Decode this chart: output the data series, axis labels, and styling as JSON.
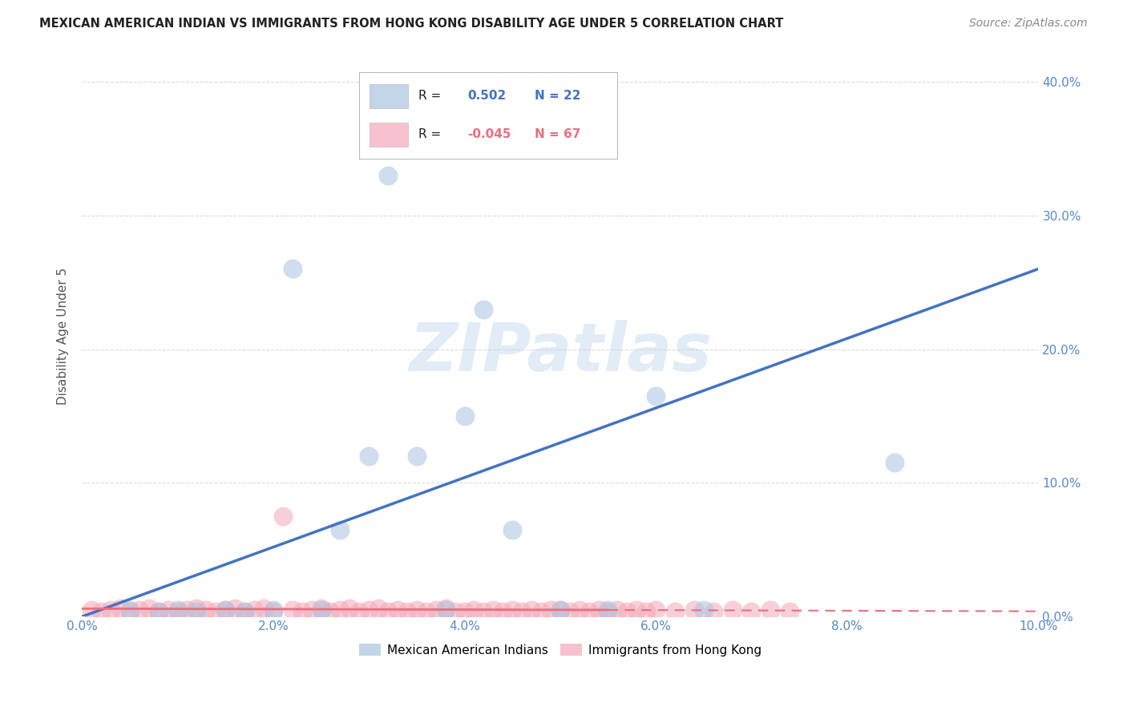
{
  "title": "MEXICAN AMERICAN INDIAN VS IMMIGRANTS FROM HONG KONG DISABILITY AGE UNDER 5 CORRELATION CHART",
  "source": "Source: ZipAtlas.com",
  "ylabel": "Disability Age Under 5",
  "xlim": [
    0.0,
    0.1
  ],
  "ylim": [
    0.0,
    0.42
  ],
  "xticks": [
    0.0,
    0.02,
    0.04,
    0.06,
    0.08,
    0.1
  ],
  "yticks": [
    0.0,
    0.1,
    0.2,
    0.3,
    0.4
  ],
  "blue_R": 0.502,
  "blue_N": 22,
  "pink_R": -0.045,
  "pink_N": 67,
  "blue_color": "#A8C4E0",
  "pink_color": "#F4A8B8",
  "blue_line_color": "#4472C4",
  "pink_line_color": "#E87080",
  "grid_color": "#CCCCCC",
  "background_color": "#FFFFFF",
  "watermark_text": "ZIPatlas",
  "blue_scatter_x": [
    0.005,
    0.008,
    0.01,
    0.012,
    0.015,
    0.017,
    0.02,
    0.022,
    0.025,
    0.027,
    0.03,
    0.032,
    0.035,
    0.038,
    0.04,
    0.042,
    0.045,
    0.05,
    0.055,
    0.06,
    0.065,
    0.085
  ],
  "blue_scatter_y": [
    0.005,
    0.004,
    0.005,
    0.004,
    0.005,
    0.004,
    0.005,
    0.26,
    0.005,
    0.065,
    0.12,
    0.33,
    0.12,
    0.005,
    0.15,
    0.23,
    0.065,
    0.005,
    0.005,
    0.165,
    0.005,
    0.115
  ],
  "pink_scatter_x": [
    0.001,
    0.002,
    0.003,
    0.004,
    0.005,
    0.006,
    0.007,
    0.008,
    0.009,
    0.01,
    0.011,
    0.012,
    0.013,
    0.014,
    0.015,
    0.016,
    0.017,
    0.018,
    0.019,
    0.02,
    0.021,
    0.022,
    0.023,
    0.024,
    0.025,
    0.026,
    0.027,
    0.028,
    0.029,
    0.03,
    0.031,
    0.032,
    0.033,
    0.034,
    0.035,
    0.036,
    0.037,
    0.038,
    0.039,
    0.04,
    0.041,
    0.042,
    0.043,
    0.044,
    0.045,
    0.046,
    0.047,
    0.048,
    0.049,
    0.05,
    0.051,
    0.052,
    0.053,
    0.054,
    0.055,
    0.056,
    0.057,
    0.058,
    0.059,
    0.06,
    0.062,
    0.064,
    0.066,
    0.068,
    0.07,
    0.072,
    0.074
  ],
  "pink_scatter_y": [
    0.005,
    0.004,
    0.005,
    0.006,
    0.004,
    0.005,
    0.006,
    0.004,
    0.005,
    0.004,
    0.005,
    0.006,
    0.005,
    0.004,
    0.005,
    0.006,
    0.004,
    0.005,
    0.006,
    0.004,
    0.075,
    0.005,
    0.004,
    0.005,
    0.006,
    0.004,
    0.005,
    0.006,
    0.004,
    0.005,
    0.006,
    0.004,
    0.005,
    0.004,
    0.005,
    0.004,
    0.005,
    0.006,
    0.004,
    0.004,
    0.005,
    0.004,
    0.005,
    0.004,
    0.005,
    0.004,
    0.005,
    0.004,
    0.005,
    0.005,
    0.004,
    0.005,
    0.004,
    0.005,
    0.004,
    0.005,
    0.004,
    0.005,
    0.004,
    0.005,
    0.004,
    0.005,
    0.004,
    0.005,
    0.004,
    0.005,
    0.004
  ],
  "blue_line_x0": 0.0,
  "blue_line_y0": 0.0,
  "blue_line_x1": 0.1,
  "blue_line_y1": 0.26,
  "pink_line_x0": 0.0,
  "pink_line_y0": 0.006,
  "pink_line_x1": 0.055,
  "pink_line_y1": 0.005,
  "pink_line_dash_x0": 0.055,
  "pink_line_dash_x1": 0.1,
  "pink_line_dash_y0": 0.005,
  "pink_line_dash_y1": 0.004
}
